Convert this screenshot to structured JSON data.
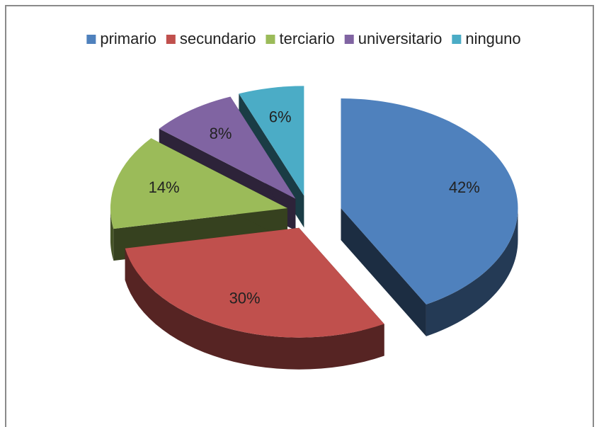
{
  "chart_data": {
    "type": "pie",
    "categories": [
      "primario",
      "secundario",
      "terciario",
      "universitario",
      "ninguno"
    ],
    "values": [
      42,
      30,
      14,
      8,
      6
    ],
    "value_labels": [
      "42%",
      "30%",
      "14%",
      "8%",
      "6%"
    ],
    "colors": [
      "#4f81bd",
      "#c0504d",
      "#9bbb59",
      "#8064a2",
      "#4bacc6"
    ],
    "legend": "top",
    "exploded": true,
    "3d": true
  }
}
